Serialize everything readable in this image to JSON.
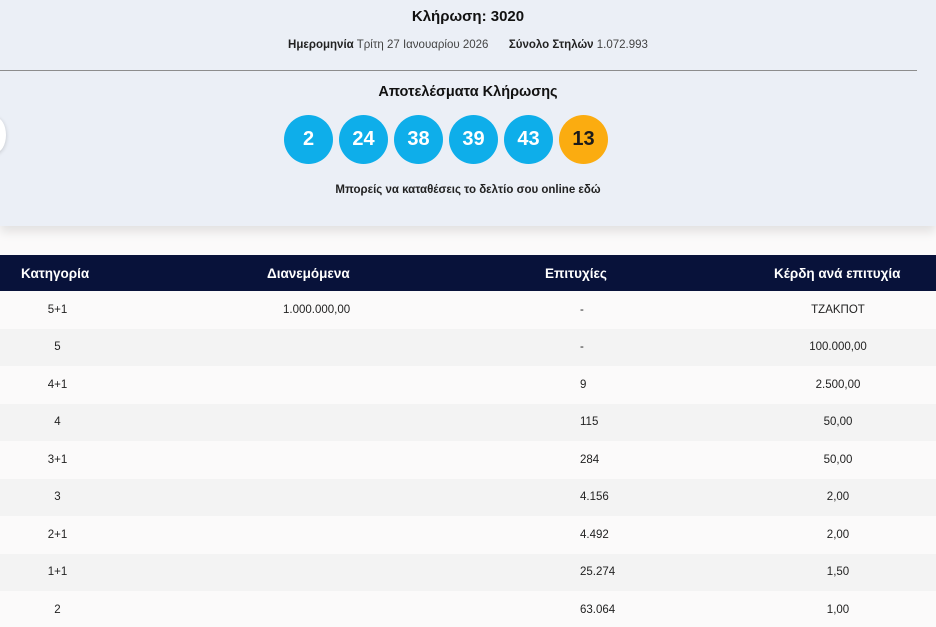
{
  "draw": {
    "title": "Κλήρωση: 3020",
    "date_label": "Ημερομηνία",
    "date_value": "Τρίτη 27 Ιανουαρίου 2026",
    "columns_label": "Σύνολο Στηλών",
    "columns_value": "1.072.993"
  },
  "results": {
    "title": "Αποτελέσματα Κλήρωσης",
    "numbers": [
      "2",
      "24",
      "38",
      "39",
      "43"
    ],
    "bonus": "13",
    "online_text": "Μπορείς να καταθέσεις το δελτίο σου online εδώ"
  },
  "table": {
    "headers": [
      "Κατηγορία",
      "Διανεμόμενα",
      "Επιτυχίες",
      "Κέρδη ανά επιτυχία"
    ],
    "rows": [
      [
        "5+1",
        "1.000.000,00",
        "-",
        "ΤΖΑΚΠΟΤ"
      ],
      [
        "5",
        "",
        "-",
        "100.000,00"
      ],
      [
        "4+1",
        "",
        "9",
        "2.500,00"
      ],
      [
        "4",
        "",
        "115",
        "50,00"
      ],
      [
        "3+1",
        "",
        "284",
        "50,00"
      ],
      [
        "3",
        "",
        "4.156",
        "2,00"
      ],
      [
        "2+1",
        "",
        "4.492",
        "2,00"
      ],
      [
        "1+1",
        "",
        "25.274",
        "1,50"
      ],
      [
        "2",
        "",
        "63.064",
        "1,00"
      ]
    ]
  },
  "colors": {
    "number_ball": "#0eaeea",
    "bonus_ball": "#fbac10",
    "table_header": "#08123a"
  }
}
